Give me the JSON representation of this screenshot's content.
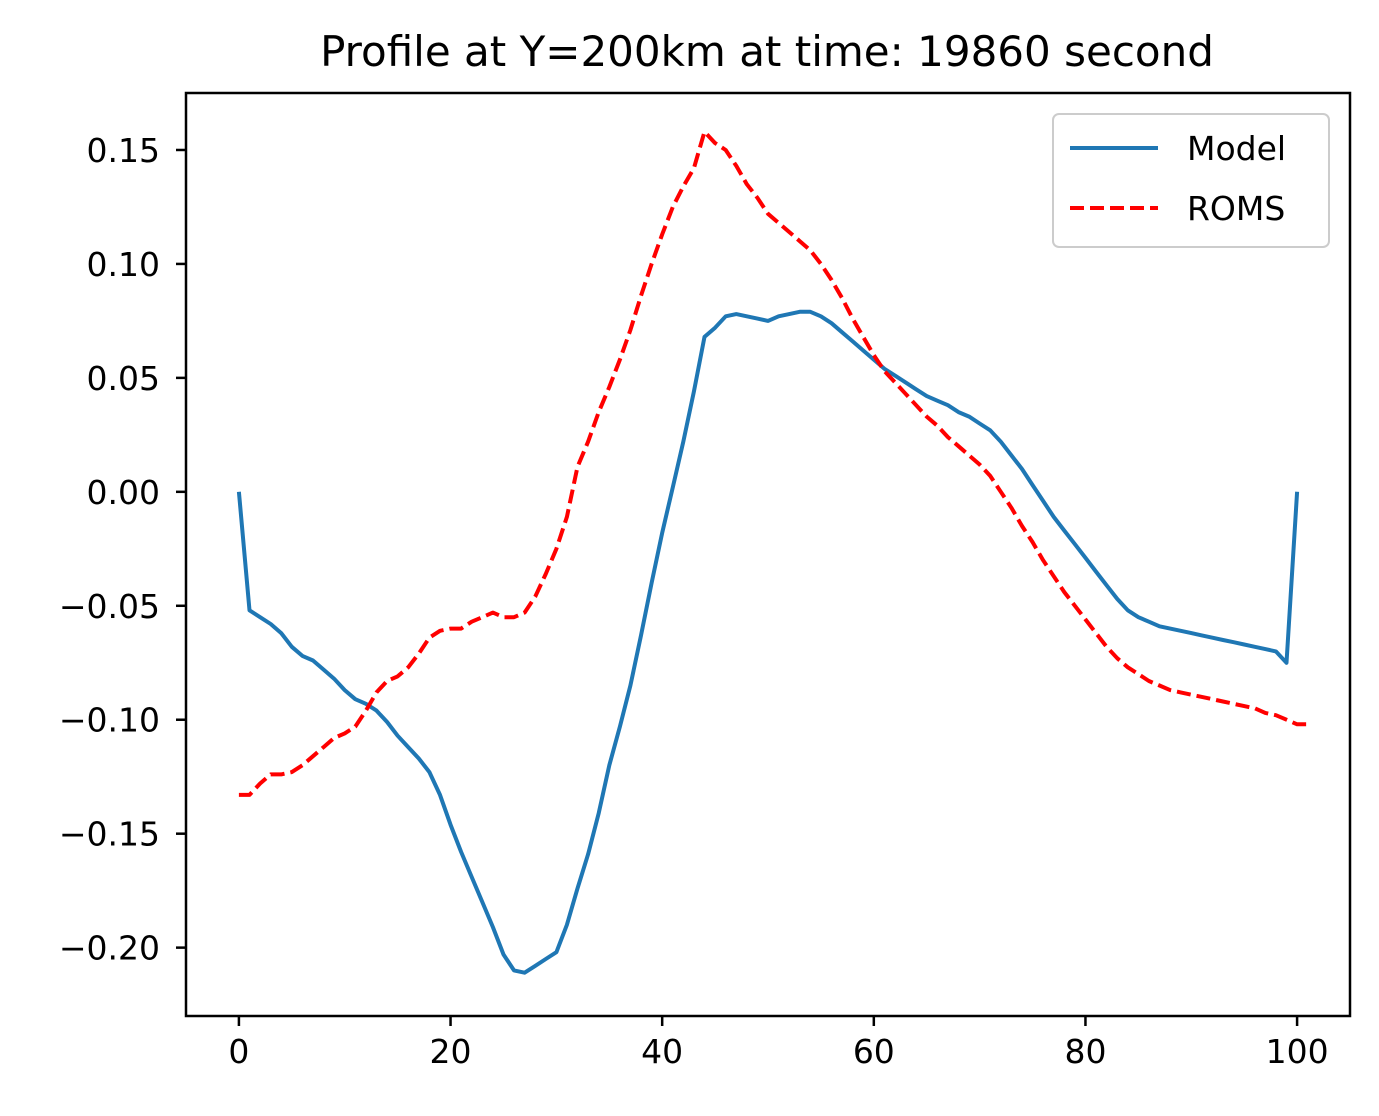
{
  "chart_data": {
    "type": "line",
    "title": "Profile at Y=200km at time: 19860 second",
    "xlabel": "",
    "ylabel": "",
    "xlim": [
      -5,
      105
    ],
    "ylim": [
      -0.23,
      0.175
    ],
    "x_ticks": [
      0,
      20,
      40,
      60,
      80,
      100
    ],
    "x_tick_labels": [
      "0",
      "20",
      "40",
      "60",
      "80",
      "100"
    ],
    "y_ticks": [
      0.15,
      0.1,
      0.05,
      0.0,
      -0.05,
      -0.1,
      -0.15,
      -0.2
    ],
    "y_tick_labels": [
      "0.15",
      "0.10",
      "0.05",
      "0.00",
      "−0.05",
      "−0.10",
      "−0.15",
      "−0.20"
    ],
    "grid": false,
    "legend_position": "top-right",
    "series": [
      {
        "name": "Model",
        "color": "#1f77b4",
        "style": "solid",
        "points": [
          [
            0,
            0.0
          ],
          [
            1,
            -0.052
          ],
          [
            2,
            -0.055
          ],
          [
            3,
            -0.058
          ],
          [
            4,
            -0.062
          ],
          [
            5,
            -0.068
          ],
          [
            6,
            -0.072
          ],
          [
            7,
            -0.074
          ],
          [
            8,
            -0.078
          ],
          [
            9,
            -0.082
          ],
          [
            10,
            -0.087
          ],
          [
            11,
            -0.091
          ],
          [
            12,
            -0.093
          ],
          [
            13,
            -0.096
          ],
          [
            14,
            -0.101
          ],
          [
            15,
            -0.107
          ],
          [
            16,
            -0.112
          ],
          [
            17,
            -0.117
          ],
          [
            18,
            -0.123
          ],
          [
            19,
            -0.133
          ],
          [
            20,
            -0.146
          ],
          [
            21,
            -0.158
          ],
          [
            22,
            -0.169
          ],
          [
            23,
            -0.18
          ],
          [
            24,
            -0.191
          ],
          [
            25,
            -0.203
          ],
          [
            26,
            -0.21
          ],
          [
            27,
            -0.211
          ],
          [
            28,
            -0.208
          ],
          [
            29,
            -0.205
          ],
          [
            30,
            -0.202
          ],
          [
            31,
            -0.19
          ],
          [
            32,
            -0.174
          ],
          [
            33,
            -0.159
          ],
          [
            34,
            -0.141
          ],
          [
            35,
            -0.12
          ],
          [
            36,
            -0.103
          ],
          [
            37,
            -0.085
          ],
          [
            38,
            -0.063
          ],
          [
            39,
            -0.04
          ],
          [
            40,
            -0.018
          ],
          [
            41,
            0.002
          ],
          [
            42,
            0.022
          ],
          [
            43,
            0.044
          ],
          [
            44,
            0.068
          ],
          [
            45,
            0.072
          ],
          [
            46,
            0.077
          ],
          [
            47,
            0.078
          ],
          [
            48,
            0.077
          ],
          [
            49,
            0.076
          ],
          [
            50,
            0.075
          ],
          [
            51,
            0.077
          ],
          [
            52,
            0.078
          ],
          [
            53,
            0.079
          ],
          [
            54,
            0.079
          ],
          [
            55,
            0.077
          ],
          [
            56,
            0.074
          ],
          [
            57,
            0.07
          ],
          [
            58,
            0.066
          ],
          [
            59,
            0.062
          ],
          [
            60,
            0.058
          ],
          [
            61,
            0.054
          ],
          [
            62,
            0.051
          ],
          [
            63,
            0.048
          ],
          [
            64,
            0.045
          ],
          [
            65,
            0.042
          ],
          [
            66,
            0.04
          ],
          [
            67,
            0.038
          ],
          [
            68,
            0.035
          ],
          [
            69,
            0.033
          ],
          [
            70,
            0.03
          ],
          [
            71,
            0.027
          ],
          [
            72,
            0.022
          ],
          [
            73,
            0.016
          ],
          [
            74,
            0.01
          ],
          [
            75,
            0.003
          ],
          [
            76,
            -0.004
          ],
          [
            77,
            -0.011
          ],
          [
            78,
            -0.017
          ],
          [
            79,
            -0.023
          ],
          [
            80,
            -0.029
          ],
          [
            81,
            -0.035
          ],
          [
            82,
            -0.041
          ],
          [
            83,
            -0.047
          ],
          [
            84,
            -0.052
          ],
          [
            85,
            -0.055
          ],
          [
            86,
            -0.057
          ],
          [
            87,
            -0.059
          ],
          [
            88,
            -0.06
          ],
          [
            89,
            -0.061
          ],
          [
            90,
            -0.062
          ],
          [
            91,
            -0.063
          ],
          [
            92,
            -0.064
          ],
          [
            93,
            -0.065
          ],
          [
            94,
            -0.066
          ],
          [
            95,
            -0.067
          ],
          [
            96,
            -0.068
          ],
          [
            97,
            -0.069
          ],
          [
            98,
            -0.07
          ],
          [
            99,
            -0.075
          ],
          [
            100,
            0.0
          ]
        ]
      },
      {
        "name": "ROMS",
        "color": "#ff0000",
        "style": "dashed",
        "points": [
          [
            0,
            -0.133
          ],
          [
            1,
            -0.133
          ],
          [
            2,
            -0.128
          ],
          [
            3,
            -0.124
          ],
          [
            4,
            -0.124
          ],
          [
            5,
            -0.123
          ],
          [
            6,
            -0.12
          ],
          [
            7,
            -0.116
          ],
          [
            8,
            -0.112
          ],
          [
            9,
            -0.108
          ],
          [
            10,
            -0.106
          ],
          [
            11,
            -0.103
          ],
          [
            12,
            -0.096
          ],
          [
            13,
            -0.088
          ],
          [
            14,
            -0.083
          ],
          [
            15,
            -0.081
          ],
          [
            16,
            -0.077
          ],
          [
            17,
            -0.071
          ],
          [
            18,
            -0.064
          ],
          [
            19,
            -0.061
          ],
          [
            20,
            -0.06
          ],
          [
            21,
            -0.06
          ],
          [
            22,
            -0.057
          ],
          [
            23,
            -0.055
          ],
          [
            24,
            -0.053
          ],
          [
            25,
            -0.055
          ],
          [
            26,
            -0.055
          ],
          [
            27,
            -0.053
          ],
          [
            28,
            -0.046
          ],
          [
            29,
            -0.036
          ],
          [
            30,
            -0.025
          ],
          [
            31,
            -0.011
          ],
          [
            32,
            0.011
          ],
          [
            33,
            0.022
          ],
          [
            34,
            0.035
          ],
          [
            35,
            0.046
          ],
          [
            36,
            0.058
          ],
          [
            37,
            0.071
          ],
          [
            38,
            0.086
          ],
          [
            39,
            0.1
          ],
          [
            40,
            0.113
          ],
          [
            41,
            0.125
          ],
          [
            42,
            0.134
          ],
          [
            43,
            0.142
          ],
          [
            44,
            0.158
          ],
          [
            45,
            0.153
          ],
          [
            46,
            0.15
          ],
          [
            47,
            0.143
          ],
          [
            48,
            0.135
          ],
          [
            49,
            0.129
          ],
          [
            50,
            0.122
          ],
          [
            51,
            0.118
          ],
          [
            52,
            0.114
          ],
          [
            53,
            0.11
          ],
          [
            54,
            0.106
          ],
          [
            55,
            0.1
          ],
          [
            56,
            0.093
          ],
          [
            57,
            0.085
          ],
          [
            58,
            0.076
          ],
          [
            59,
            0.068
          ],
          [
            60,
            0.06
          ],
          [
            61,
            0.053
          ],
          [
            62,
            0.048
          ],
          [
            63,
            0.043
          ],
          [
            64,
            0.038
          ],
          [
            65,
            0.033
          ],
          [
            66,
            0.029
          ],
          [
            67,
            0.024
          ],
          [
            68,
            0.02
          ],
          [
            69,
            0.016
          ],
          [
            70,
            0.012
          ],
          [
            71,
            0.007
          ],
          [
            72,
            0.0
          ],
          [
            73,
            -0.007
          ],
          [
            74,
            -0.015
          ],
          [
            75,
            -0.022
          ],
          [
            76,
            -0.03
          ],
          [
            77,
            -0.037
          ],
          [
            78,
            -0.044
          ],
          [
            79,
            -0.05
          ],
          [
            80,
            -0.056
          ],
          [
            81,
            -0.062
          ],
          [
            82,
            -0.068
          ],
          [
            83,
            -0.073
          ],
          [
            84,
            -0.077
          ],
          [
            85,
            -0.08
          ],
          [
            86,
            -0.083
          ],
          [
            87,
            -0.085
          ],
          [
            88,
            -0.087
          ],
          [
            89,
            -0.088
          ],
          [
            90,
            -0.089
          ],
          [
            91,
            -0.09
          ],
          [
            92,
            -0.091
          ],
          [
            93,
            -0.092
          ],
          [
            94,
            -0.093
          ],
          [
            95,
            -0.094
          ],
          [
            96,
            -0.095
          ],
          [
            97,
            -0.097
          ],
          [
            98,
            -0.098
          ],
          [
            99,
            -0.1
          ],
          [
            100,
            -0.102
          ],
          [
            101,
            -0.102
          ]
        ]
      }
    ]
  }
}
